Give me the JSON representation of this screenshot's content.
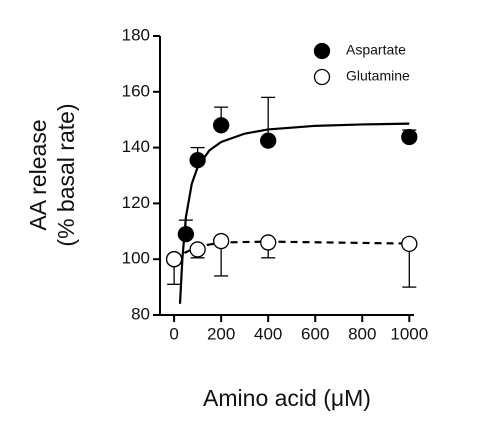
{
  "chart_data": {
    "type": "scatter",
    "y_label_lines": [
      "AA release",
      "(% basal rate)"
    ],
    "x_label": "Amino acid (μM)",
    "xlim": [
      -60,
      1020
    ],
    "xticks": [
      0,
      200,
      400,
      600,
      800,
      1000
    ],
    "ylim": [
      80,
      180
    ],
    "yticks": [
      80,
      100,
      120,
      140,
      160,
      180
    ],
    "legend": "top-right",
    "series": [
      {
        "name": "Aspartate",
        "color": "#000000",
        "filled": true,
        "error_direction": "up",
        "x": [
          0,
          50,
          100,
          200,
          400,
          1000
        ],
        "values": [
          100,
          109,
          135.5,
          148,
          142.5,
          143.8
        ],
        "errors": [
          0,
          5,
          4.5,
          6.5,
          15.5,
          2.5
        ]
      },
      {
        "name": "Glutamine",
        "color": "#000000",
        "filled": false,
        "error_direction": "down",
        "x": [
          0,
          100,
          200,
          400,
          1000
        ],
        "values": [
          100,
          103.5,
          106.5,
          106,
          105.5
        ],
        "errors": [
          9,
          3,
          12.5,
          5.5,
          15.5
        ]
      }
    ],
    "fits": [
      {
        "dashed": false,
        "color": "#000000",
        "x": [
          25,
          35,
          50,
          75,
          100,
          150,
          200,
          300,
          400,
          600,
          800,
          1000
        ],
        "values": [
          84,
          100,
          115,
          127,
          133,
          139,
          142,
          145,
          146.5,
          147.8,
          148.3,
          148.6
        ]
      },
      {
        "dashed": true,
        "color": "#000000",
        "x": [
          0,
          50,
          100,
          200,
          400,
          1000
        ],
        "values": [
          100,
          102.5,
          104.5,
          106,
          106.3,
          105.6
        ]
      }
    ]
  }
}
